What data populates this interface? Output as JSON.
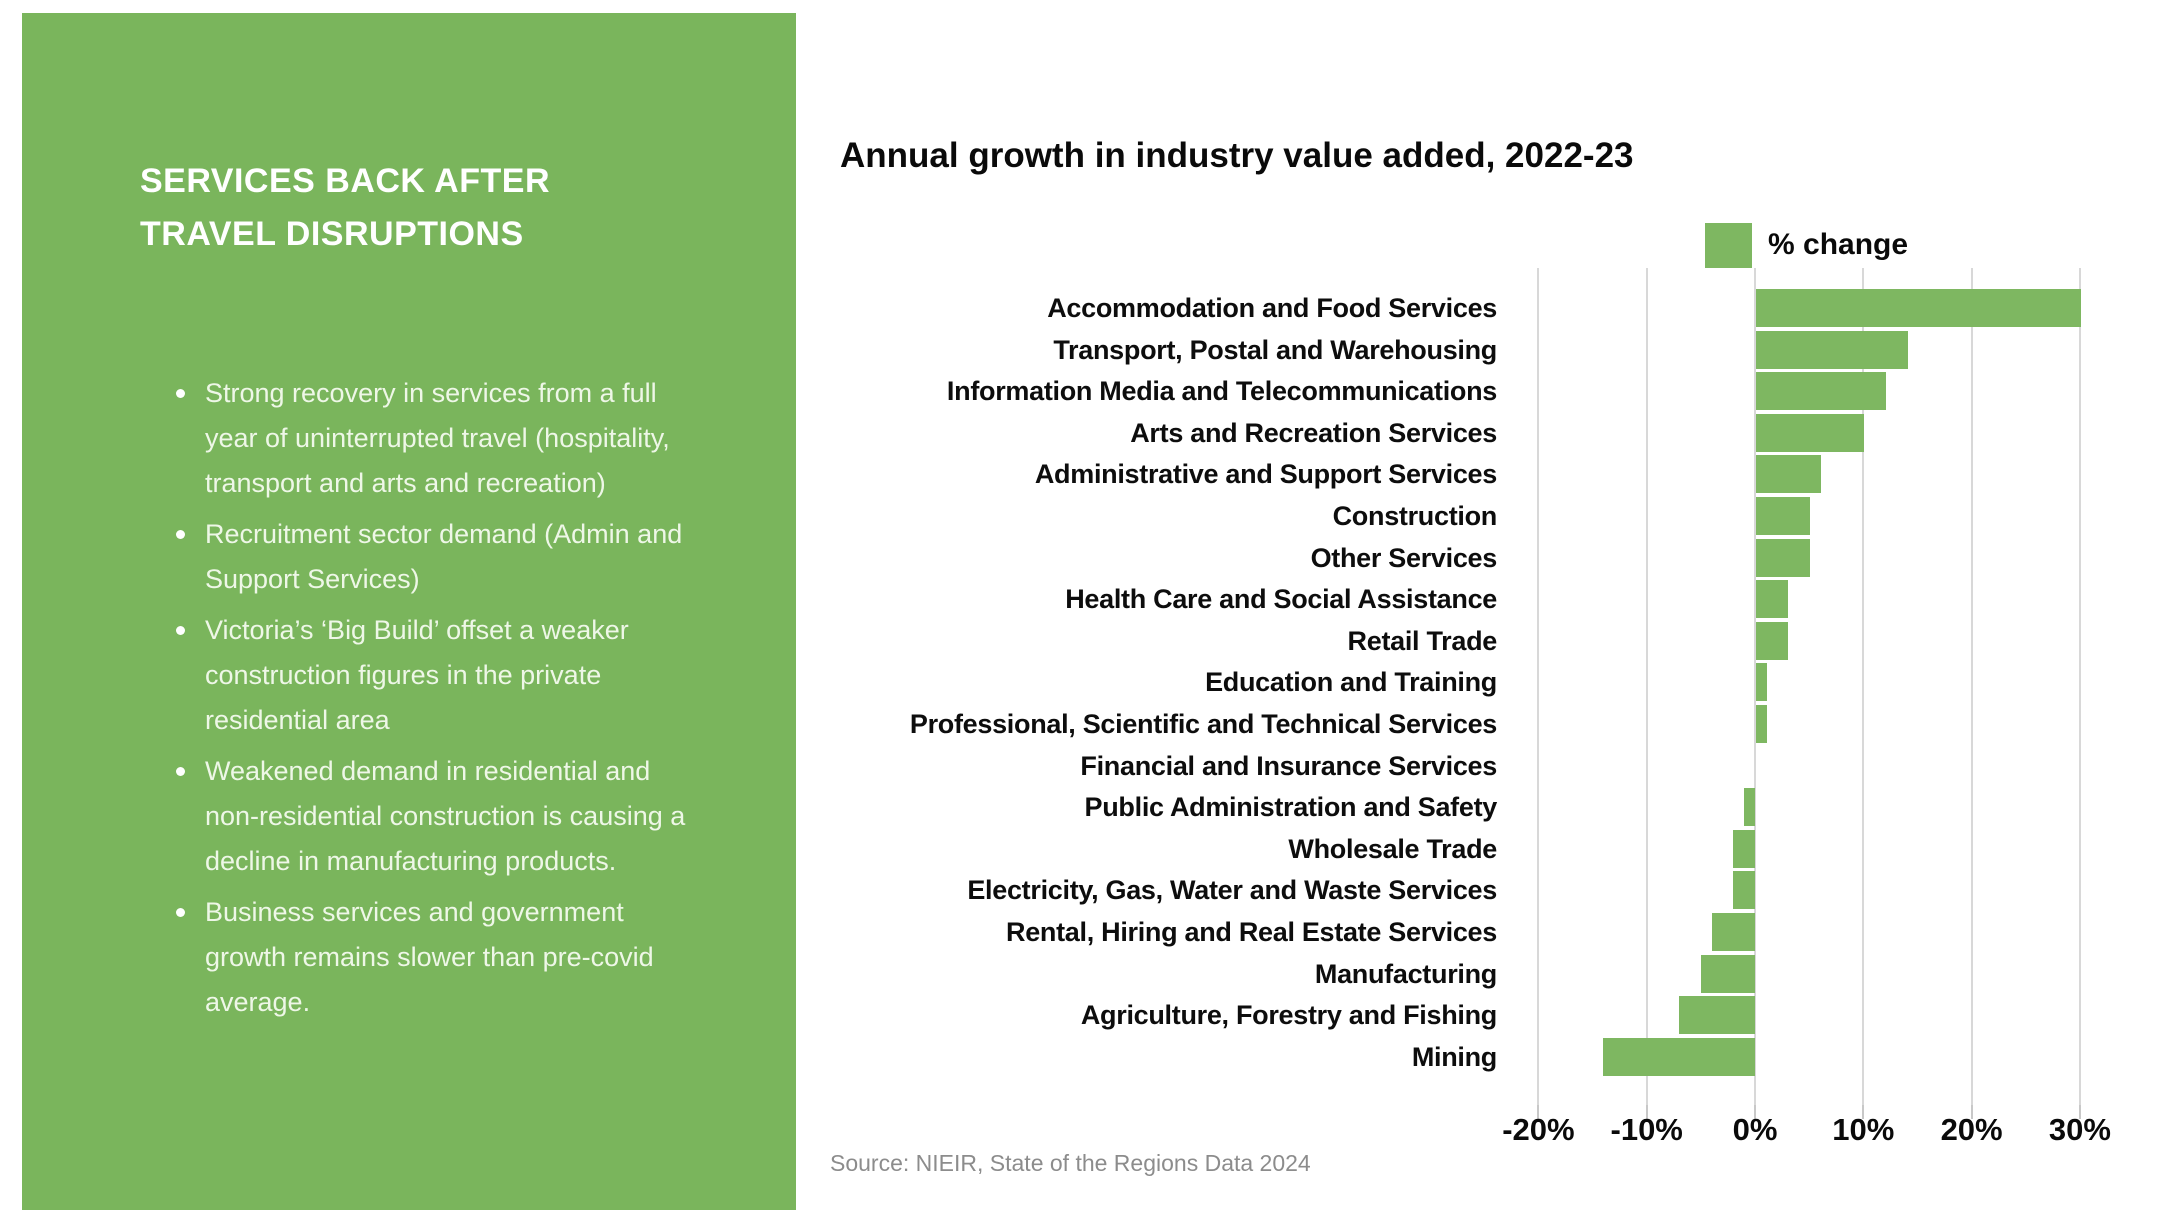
{
  "panel": {
    "background_color": "#7ab55c",
    "title": "SERVICES BACK AFTER\nTRAVEL DISRUPTIONS",
    "bullets": [
      "Strong recovery in services from a full\nyear of uninterrupted travel (hospitality,\ntransport and arts and recreation)",
      "Recruitment sector demand (Admin and\nSupport Services)",
      "Victoria’s ‘Big Build’ offset a weaker\nconstruction figures in the private\nresidential area",
      "Weakened demand in residential and\nnon-residential construction is causing a\ndecline in manufacturing products.",
      "Business services and government\ngrowth remains slower than pre-covid\naverage."
    ]
  },
  "chart": {
    "title": "Annual growth in industry value added, 2022-23",
    "legend_label": "% change",
    "source": "Source: NIEIR, State of the Regions Data 2024",
    "bar_color": "#7eb761",
    "gridline_color": "#d8d8d8"
  },
  "chart_data": {
    "type": "bar",
    "orientation": "horizontal",
    "title": "Annual growth in industry value added, 2022-23",
    "legend": [
      "% change"
    ],
    "legend_position": "top-right",
    "grid": true,
    "xlim": [
      -20,
      30
    ],
    "x_tick_values": [
      -20,
      -10,
      0,
      10,
      20,
      30
    ],
    "x_ticks": [
      "-20%",
      "-10%",
      "0%",
      "10%",
      "20%",
      "30%"
    ],
    "unit": "percent",
    "categories": [
      "Accommodation and Food Services",
      "Transport, Postal and Warehousing",
      "Information Media and Telecommunications",
      "Arts and Recreation Services",
      "Administrative and Support Services",
      "Construction",
      "Other Services",
      "Health Care and Social Assistance",
      "Retail Trade",
      "Education and Training",
      "Professional, Scientific and Technical Services",
      "Financial and Insurance Services",
      "Public Administration and Safety",
      "Wholesale Trade",
      "Electricity, Gas, Water and Waste Services",
      "Rental, Hiring and Real Estate Services",
      "Manufacturing",
      "Agriculture, Forestry and Fishing",
      "Mining"
    ],
    "values": [
      30,
      14,
      12,
      10,
      6,
      5,
      5,
      3,
      3,
      1,
      1,
      0,
      -1,
      -2,
      -2,
      -4,
      -5,
      -7,
      -14
    ],
    "source": "Source: NIEIR, State of the Regions Data 2024"
  }
}
